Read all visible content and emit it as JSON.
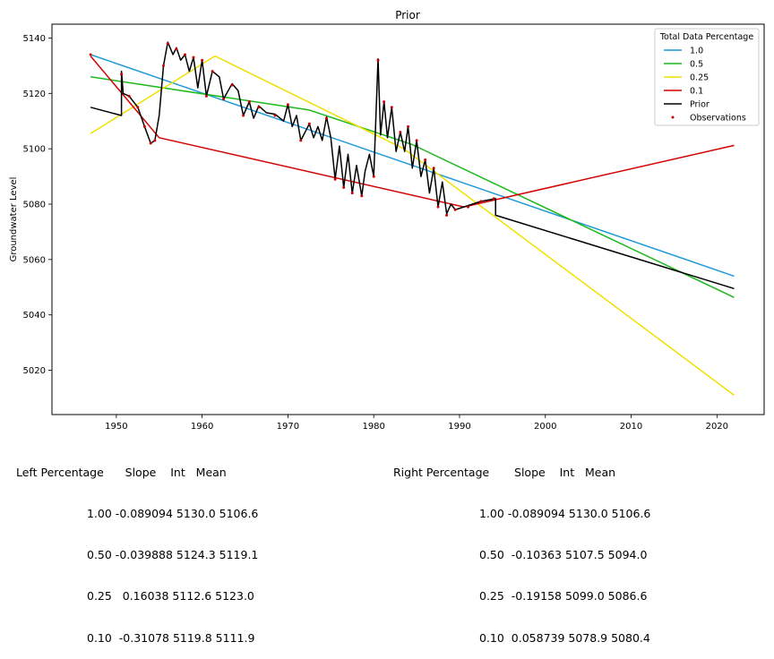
{
  "chart_data": {
    "type": "line",
    "title": "Prior",
    "xlabel": "",
    "ylabel": "Groundwater Level",
    "xlim": [
      1942.5,
      2025.5
    ],
    "ylim": [
      5004,
      5145
    ],
    "xticks": [
      1950,
      1960,
      1970,
      1980,
      1990,
      2000,
      2010,
      2020
    ],
    "yticks": [
      5020,
      5040,
      5060,
      5080,
      5100,
      5120,
      5140
    ],
    "grid": false,
    "legend": {
      "title": "Total Data Percentage",
      "placement": "top-right"
    },
    "series": [
      {
        "name": "1.0",
        "kind": "line",
        "color": "#1f9ad6",
        "points": [
          [
            1947,
            5134.0
          ],
          [
            2022,
            5054.0
          ]
        ]
      },
      {
        "name": "0.5",
        "kind": "line",
        "color": "#1cb81c",
        "points": [
          [
            1947,
            5126.0
          ],
          [
            1972.5,
            5114.0
          ],
          [
            1984.5,
            5101.5
          ],
          [
            2022,
            5046.3
          ]
        ]
      },
      {
        "name": "0.25",
        "kind": "line",
        "color": "#f0e000",
        "points": [
          [
            1947,
            5105.5
          ],
          [
            1961.5,
            5133.5
          ],
          [
            1983.5,
            5100.0
          ],
          [
            2022,
            5011.0
          ]
        ]
      },
      {
        "name": "0.1",
        "kind": "line",
        "color": "#d40000",
        "points": [
          [
            1947,
            5133.5
          ],
          [
            1955,
            5104.0
          ],
          [
            1990.5,
            5079.0
          ],
          [
            2022,
            5101.2
          ]
        ]
      },
      {
        "name": "Prior",
        "kind": "line",
        "color": "#000000",
        "points": [
          [
            1947,
            5115.0
          ],
          [
            1950.6,
            5112.0
          ],
          [
            1950.6,
            5128.0
          ],
          [
            1950.8,
            5120.0
          ],
          [
            1951.5,
            5119.0
          ],
          [
            1952.5,
            5115.0
          ],
          [
            1953.3,
            5108.0
          ],
          [
            1954.0,
            5102.0
          ],
          [
            1954.5,
            5103.0
          ],
          [
            1955.0,
            5112.0
          ],
          [
            1955.5,
            5130.0
          ],
          [
            1956.0,
            5138.5
          ],
          [
            1956.6,
            5134.0
          ],
          [
            1957.0,
            5136.5
          ],
          [
            1957.5,
            5132.0
          ],
          [
            1958.0,
            5134.0
          ],
          [
            1958.5,
            5128.0
          ],
          [
            1959.0,
            5133.0
          ],
          [
            1959.5,
            5122.0
          ],
          [
            1960.0,
            5132.0
          ],
          [
            1960.5,
            5119.0
          ],
          [
            1961.2,
            5128.0
          ],
          [
            1962.0,
            5126.0
          ],
          [
            1962.5,
            5118.0
          ],
          [
            1963.5,
            5123.5
          ],
          [
            1964.2,
            5121.0
          ],
          [
            1964.8,
            5112.0
          ],
          [
            1965.5,
            5117.0
          ],
          [
            1966.0,
            5111.0
          ],
          [
            1966.6,
            5115.5
          ],
          [
            1967.5,
            5113.0
          ],
          [
            1968.5,
            5112.5
          ],
          [
            1969.5,
            5110.0
          ],
          [
            1970.0,
            5116.0
          ],
          [
            1970.5,
            5108.0
          ],
          [
            1971.0,
            5112.0
          ],
          [
            1971.5,
            5103.0
          ],
          [
            1972.5,
            5109.0
          ],
          [
            1973.0,
            5104.0
          ],
          [
            1973.5,
            5108.0
          ],
          [
            1974.0,
            5103.0
          ],
          [
            1974.5,
            5111.5
          ],
          [
            1975.0,
            5104.0
          ],
          [
            1975.5,
            5089.0
          ],
          [
            1976.0,
            5101.0
          ],
          [
            1976.5,
            5086.0
          ],
          [
            1977.0,
            5098.0
          ],
          [
            1977.5,
            5084.0
          ],
          [
            1978.0,
            5094.0
          ],
          [
            1978.6,
            5083.0
          ],
          [
            1979.0,
            5092.0
          ],
          [
            1979.5,
            5098.0
          ],
          [
            1980.0,
            5090.0
          ],
          [
            1980.5,
            5132.5
          ],
          [
            1980.8,
            5105.0
          ],
          [
            1981.2,
            5117.0
          ],
          [
            1981.6,
            5104.0
          ],
          [
            1982.1,
            5115.0
          ],
          [
            1982.6,
            5099.0
          ],
          [
            1983.1,
            5106.0
          ],
          [
            1983.6,
            5099.0
          ],
          [
            1984.0,
            5108.0
          ],
          [
            1984.5,
            5093.0
          ],
          [
            1985.0,
            5103.0
          ],
          [
            1985.5,
            5090.0
          ],
          [
            1986.0,
            5096.0
          ],
          [
            1986.5,
            5084.0
          ],
          [
            1987.0,
            5093.0
          ],
          [
            1987.5,
            5079.0
          ],
          [
            1988.0,
            5088.0
          ],
          [
            1988.5,
            5076.5
          ],
          [
            1989.0,
            5080.0
          ],
          [
            1989.5,
            5078.0
          ],
          [
            1990.5,
            5079.0
          ],
          [
            1992.5,
            5081.0
          ],
          [
            1994.2,
            5082.0
          ],
          [
            1994.2,
            5076.0
          ],
          [
            2022,
            5049.5
          ]
        ]
      },
      {
        "name": "Observations",
        "kind": "scatter",
        "color": "#cc0000",
        "points": [
          [
            1947,
            5134
          ],
          [
            1950.6,
            5127
          ],
          [
            1951.5,
            5119
          ],
          [
            1952.5,
            5115
          ],
          [
            1953.3,
            5108
          ],
          [
            1954.0,
            5102
          ],
          [
            1954.5,
            5103
          ],
          [
            1955.5,
            5130
          ],
          [
            1956.0,
            5138
          ],
          [
            1957.0,
            5136
          ],
          [
            1958.0,
            5134
          ],
          [
            1959.0,
            5133
          ],
          [
            1960.0,
            5132
          ],
          [
            1960.5,
            5119
          ],
          [
            1961.2,
            5128
          ],
          [
            1962.5,
            5118
          ],
          [
            1963.5,
            5123
          ],
          [
            1964.8,
            5112
          ],
          [
            1965.5,
            5117
          ],
          [
            1966.6,
            5115
          ],
          [
            1968.5,
            5112
          ],
          [
            1970.0,
            5116
          ],
          [
            1971.5,
            5103
          ],
          [
            1972.5,
            5109
          ],
          [
            1974.5,
            5111
          ],
          [
            1975.5,
            5089
          ],
          [
            1976.5,
            5086
          ],
          [
            1977.5,
            5084
          ],
          [
            1978.6,
            5083
          ],
          [
            1980.0,
            5090
          ],
          [
            1980.5,
            5132
          ],
          [
            1981.2,
            5117
          ],
          [
            1982.1,
            5115
          ],
          [
            1983.1,
            5106
          ],
          [
            1984.0,
            5108
          ],
          [
            1985.0,
            5103
          ],
          [
            1986.0,
            5096
          ],
          [
            1987.0,
            5093
          ],
          [
            1987.5,
            5079
          ],
          [
            1988.5,
            5076
          ],
          [
            1989.5,
            5078
          ],
          [
            1991.0,
            5079
          ],
          [
            1992.5,
            5081
          ],
          [
            1994.0,
            5082
          ]
        ]
      }
    ]
  },
  "tables": {
    "left": {
      "header": "Left Percentage      Slope    Int   Mean",
      "rows": [
        "1.00 -0.089094 5130.0 5106.6",
        "0.50 -0.039888 5124.3 5119.1",
        "0.25   0.16038 5112.6 5123.0",
        "0.10  -0.31078 5119.8 5111.9"
      ]
    },
    "right": {
      "header": "Right Percentage       Slope    Int   Mean",
      "rows": [
        "1.00 -0.089094 5130.0 5106.6",
        "0.50  -0.10363 5107.5 5094.0",
        "0.25  -0.19158 5099.0 5086.6",
        "0.10  0.058739 5078.9 5080.4"
      ]
    }
  }
}
